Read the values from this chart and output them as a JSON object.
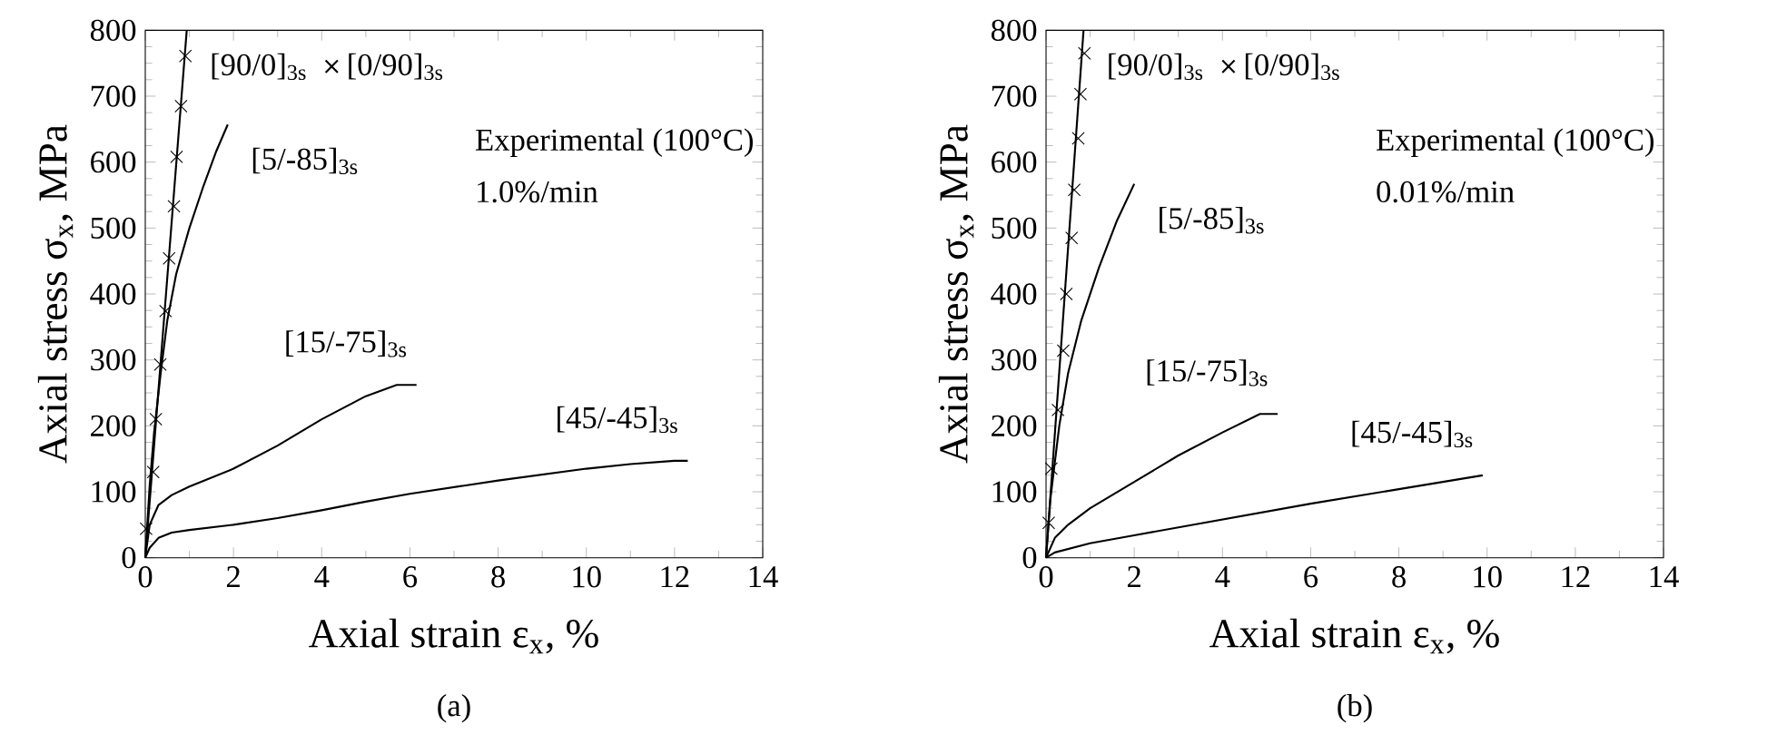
{
  "chart_data": [
    {
      "type": "line",
      "title": "(a)",
      "xlabel": "Axial strain ε$_{x}$, %",
      "ylabel": "Axial stress σ$_{x}$, MPa",
      "xlim": [
        0,
        14
      ],
      "ylim": [
        0,
        800
      ],
      "xticks": [
        0,
        2,
        4,
        6,
        8,
        10,
        12,
        14
      ],
      "yticks": [
        0,
        100,
        200,
        300,
        400,
        500,
        600,
        700,
        800
      ],
      "annotations": [
        "Experimental (100°C)",
        "1.0%/min"
      ],
      "series": [
        {
          "name": "[90/0]$_{3s}$",
          "color": "#000000",
          "x": [
            0,
            0.94
          ],
          "values": [
            0,
            800
          ]
        },
        {
          "name": "[0/90]$_{3s}$",
          "type": "scatter",
          "marker": "cross",
          "color": "#000000",
          "x": [
            0.02,
            0.18,
            0.24,
            0.34,
            0.46,
            0.54,
            0.65,
            0.71,
            0.81,
            0.91
          ],
          "values": [
            44,
            130,
            210,
            293,
            374,
            454,
            533,
            608,
            685,
            761
          ]
        },
        {
          "name": "[5/-85]$_{3s}$",
          "color": "#000000",
          "x": [
            0,
            0.1,
            0.2,
            0.35,
            0.5,
            0.7,
            1.0,
            1.3,
            1.6,
            1.87
          ],
          "values": [
            0,
            110,
            190,
            280,
            360,
            430,
            500,
            560,
            615,
            657
          ]
        },
        {
          "name": "[15/-75]$_{3s}$",
          "color": "#000000",
          "x": [
            0,
            0.1,
            0.3,
            0.6,
            1,
            2,
            3,
            4,
            5,
            5.7,
            6.15
          ],
          "values": [
            0,
            50,
            80,
            95,
            108,
            135,
            170,
            210,
            245,
            262,
            262
          ]
        },
        {
          "name": "[45/-45]$_{3s}$",
          "color": "#000000",
          "x": [
            0,
            0.1,
            0.3,
            0.6,
            1,
            2,
            3,
            4,
            5,
            6,
            8,
            10,
            11,
            12,
            12.3
          ],
          "values": [
            0,
            15,
            30,
            38,
            42,
            50,
            60,
            72,
            85,
            97,
            117,
            135,
            142,
            147,
            147
          ]
        }
      ]
    },
    {
      "type": "line",
      "title": "(b)",
      "xlabel": "Axial strain ε$_{x}$, %",
      "ylabel": "Axial stress σ$_{x}$, MPa",
      "xlim": [
        0,
        14
      ],
      "ylim": [
        0,
        800
      ],
      "xticks": [
        0,
        2,
        4,
        6,
        8,
        10,
        12,
        14
      ],
      "yticks": [
        0,
        100,
        200,
        300,
        400,
        500,
        600,
        700,
        800
      ],
      "annotations": [
        "Experimental (100°C)",
        "0.01%/min"
      ],
      "series": [
        {
          "name": "[90/0]$_{3s}$",
          "color": "#000000",
          "x": [
            0,
            0.85
          ],
          "values": [
            0,
            800
          ]
        },
        {
          "name": "[0/90]$_{3s}$",
          "type": "scatter",
          "marker": "cross",
          "color": "#000000",
          "x": [
            0.06,
            0.12,
            0.27,
            0.39,
            0.46,
            0.58,
            0.64,
            0.73,
            0.78,
            0.87
          ],
          "values": [
            53,
            135,
            224,
            314,
            400,
            485,
            558,
            636,
            703,
            765
          ]
        },
        {
          "name": "[5/-85]$_{3s}$",
          "color": "#000000",
          "x": [
            0,
            0.1,
            0.3,
            0.5,
            0.8,
            1.2,
            1.6,
            2.0
          ],
          "values": [
            0,
            90,
            200,
            280,
            360,
            440,
            510,
            567
          ]
        },
        {
          "name": "[15/-75]$_{3s}$",
          "color": "#000000",
          "x": [
            0,
            0.2,
            0.5,
            1,
            2,
            3,
            4,
            4.85,
            5.25
          ],
          "values": [
            0,
            30,
            50,
            75,
            115,
            155,
            190,
            218,
            218
          ]
        },
        {
          "name": "[45/-45]$_{3s}$",
          "color": "#000000",
          "x": [
            0,
            0.2,
            1,
            2,
            4,
            6,
            8,
            9.9
          ],
          "values": [
            0,
            8,
            22,
            34,
            58,
            82,
            104,
            125
          ]
        }
      ]
    }
  ]
}
